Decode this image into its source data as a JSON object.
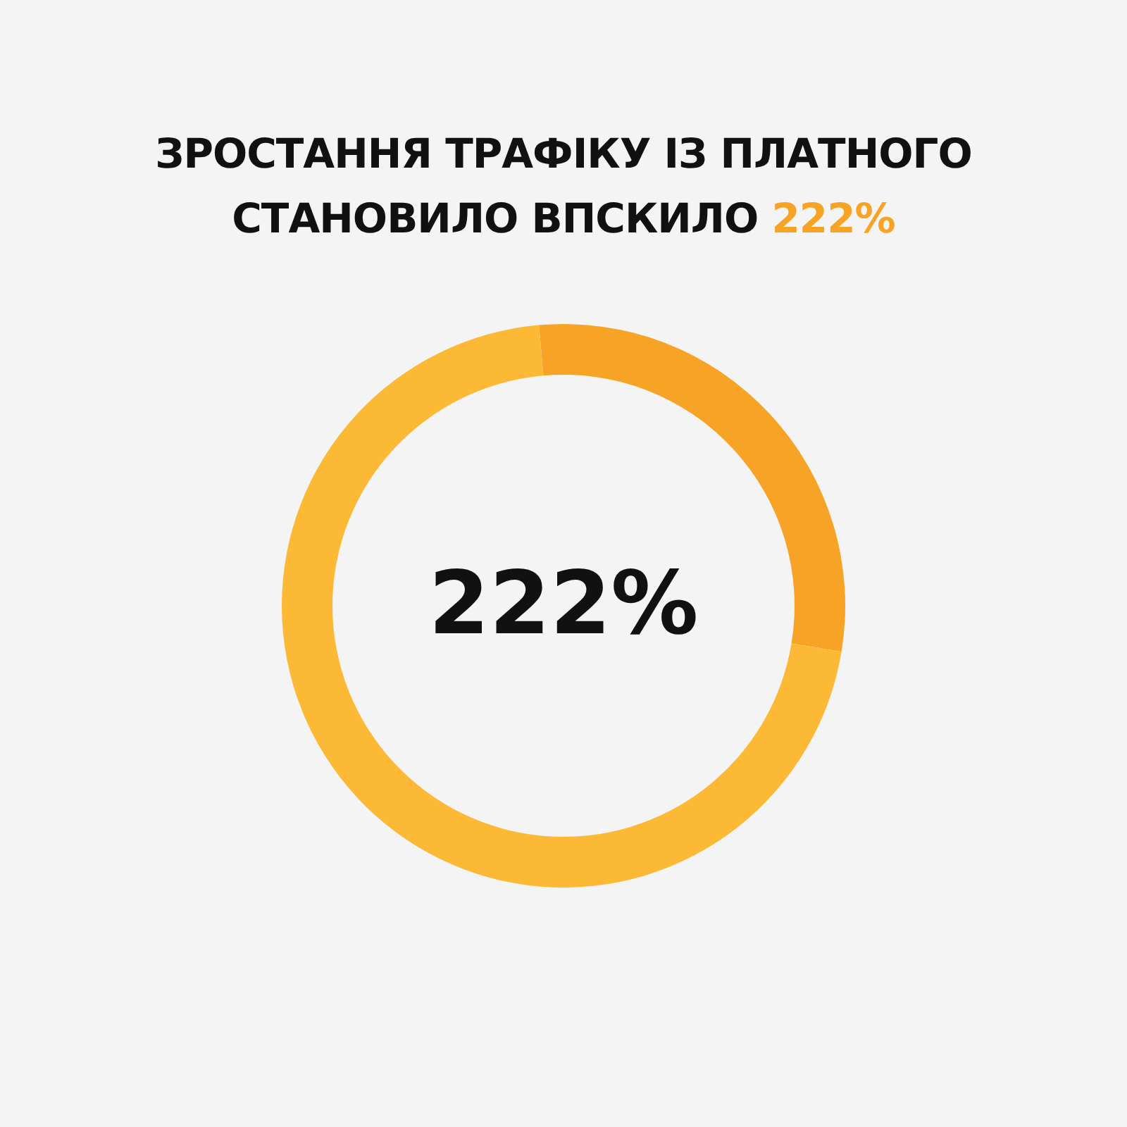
{
  "chart_data": {
    "type": "donut",
    "title": "ЗРОСТАННЯ ТРАФІКУ ІЗ ПЛАТНОГО СТАНОВИЛО ВПСКИЛО 222%",
    "categories": [
      null,
      null
    ],
    "values": [
      29,
      71
    ],
    "colors": [
      "#f7a325",
      "#fbb936"
    ],
    "annotations": [
      "222%"
    ]
  }
}
